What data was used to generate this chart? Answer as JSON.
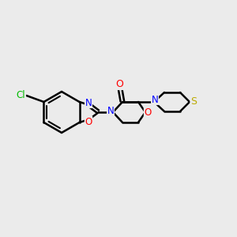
{
  "background_color": "#ebebeb",
  "bond_color": "#000000",
  "bond_width": 1.8,
  "atom_colors": {
    "C": "#000000",
    "N": "#0000ff",
    "O": "#ff0000",
    "S": "#bbaa00",
    "Cl": "#00bb00"
  },
  "figsize": [
    3.0,
    3.0
  ],
  "dpi": 100
}
